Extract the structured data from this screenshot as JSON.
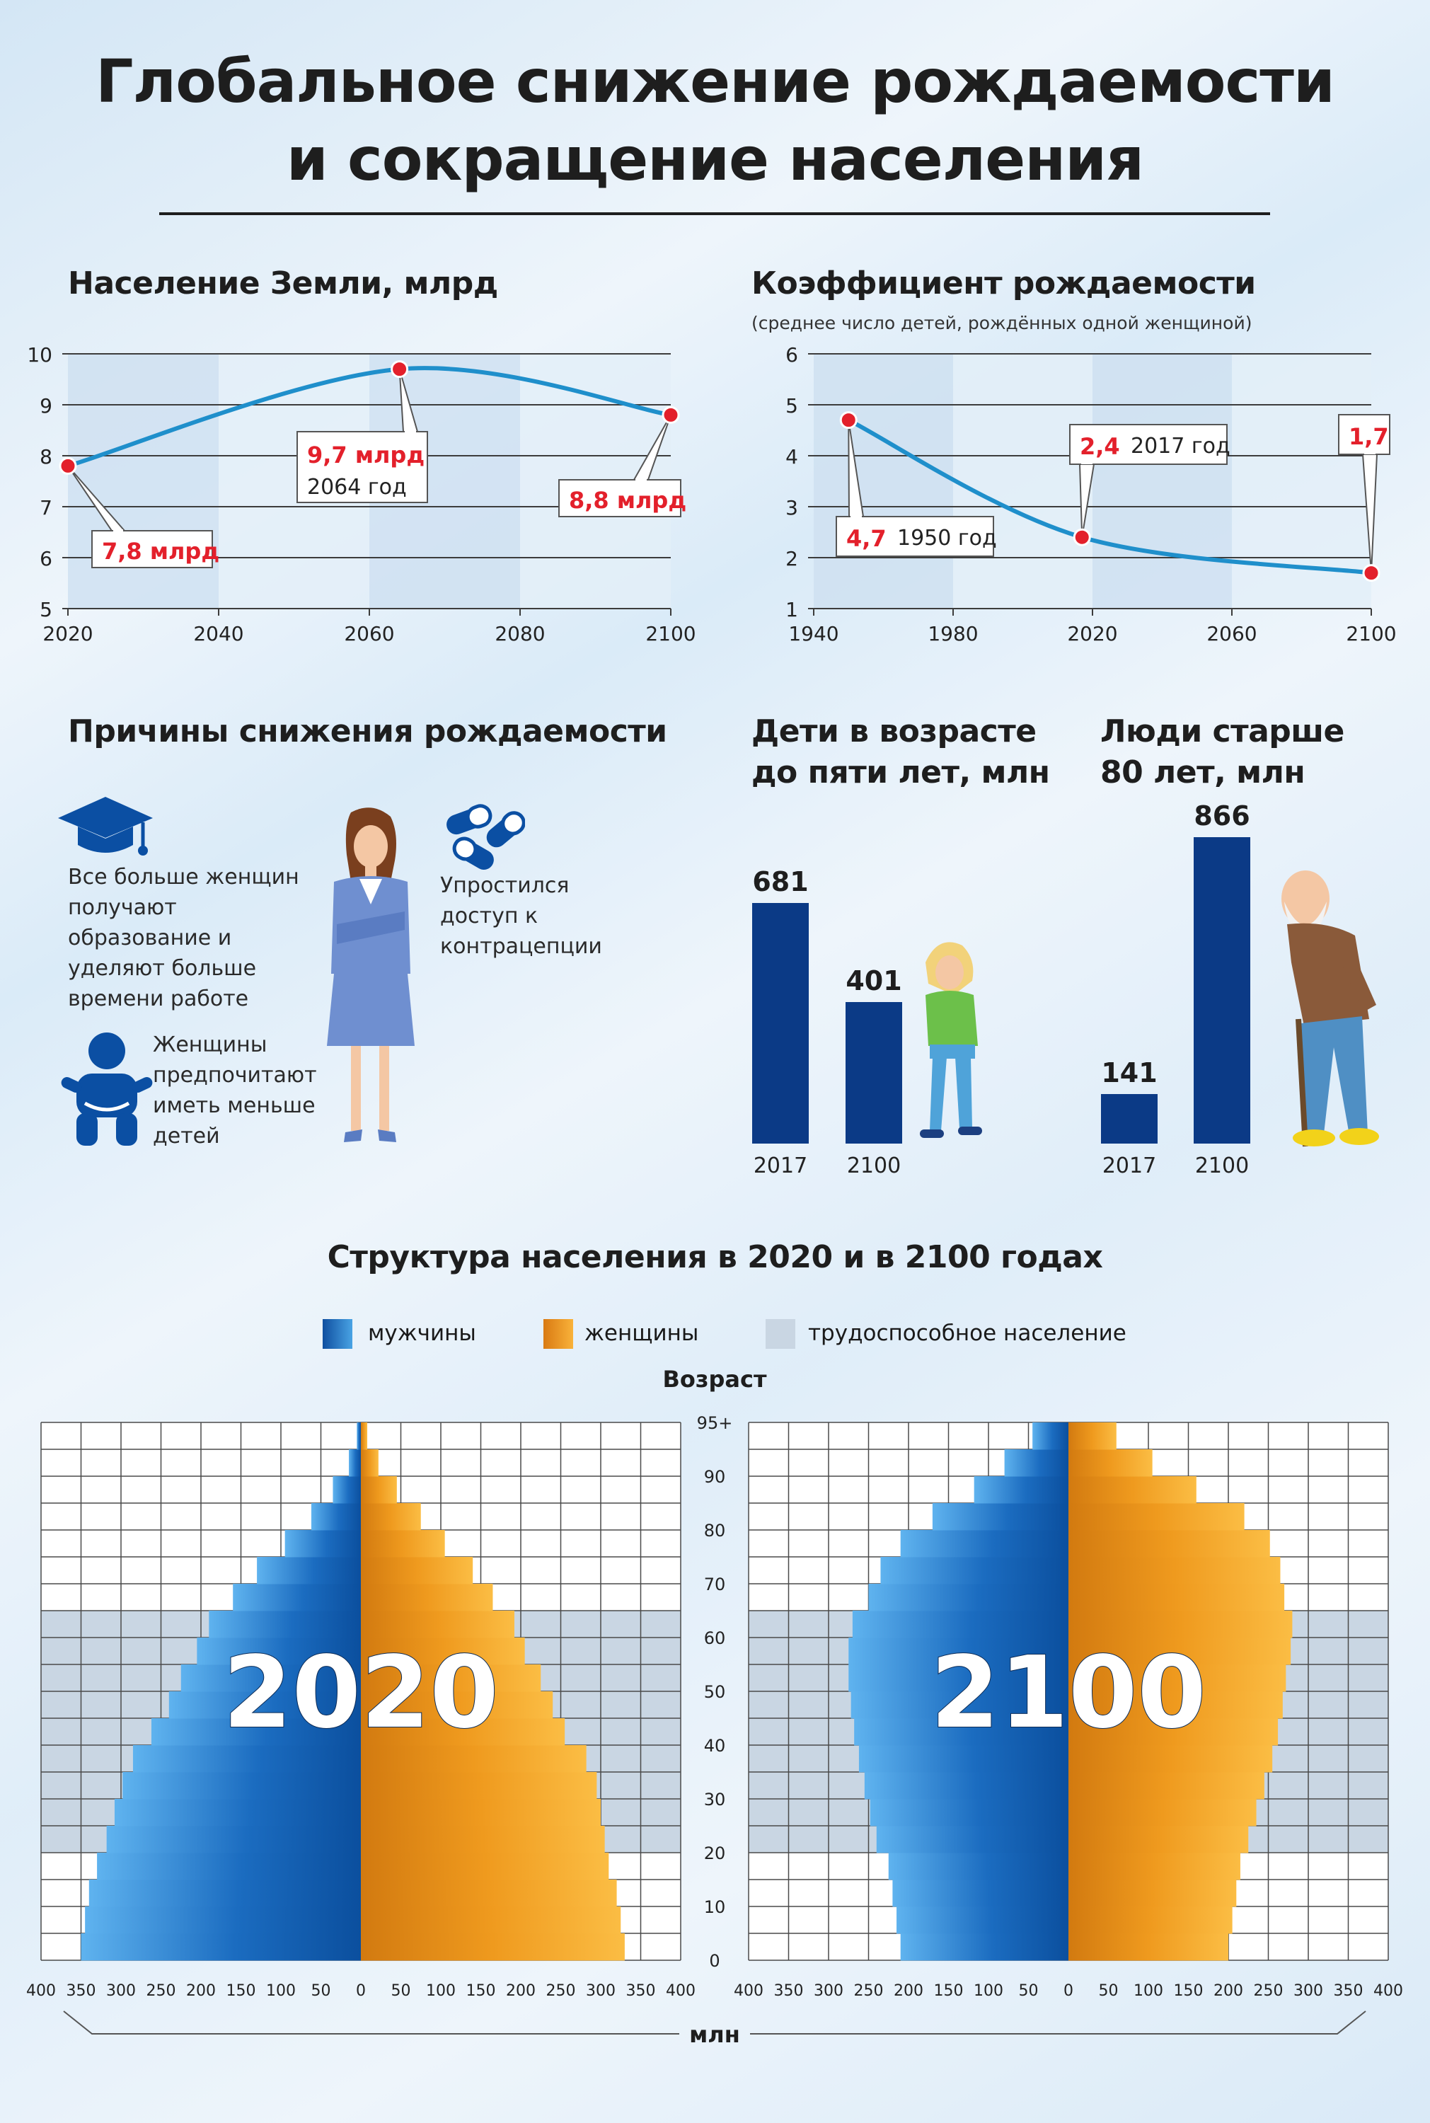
{
  "page": {
    "title_line1": "Глобальное снижение рождаемости",
    "title_line2": "и сокращение населения"
  },
  "colors": {
    "line": "#1f8fcb",
    "point": "#e3202b",
    "bar": "#0b3a86",
    "male": "#1f6fc2",
    "female": "#f19a1f",
    "working_band": "#c9d6e3"
  },
  "population": {
    "title": "Население Земли, млрд",
    "callouts": [
      {
        "value": "7,8 млрд",
        "year": ""
      },
      {
        "value": "9,7 млрд",
        "year": "2064 год"
      },
      {
        "value": "8,8 млрд",
        "year": ""
      }
    ]
  },
  "fertility": {
    "title": "Коэффициент рождаемости",
    "subtitle": "(среднее число детей, рождённых одной женщиной)",
    "callouts": [
      {
        "value": "4,7",
        "year": "1950 год"
      },
      {
        "value": "2,4",
        "year": "2017 год"
      },
      {
        "value": "1,7",
        "year": ""
      }
    ]
  },
  "reasons": {
    "title": "Причины снижения рождаемости",
    "icons": [
      "graduation-cap-icon",
      "woman-figure-icon",
      "pills-icon",
      "baby-icon"
    ],
    "items": [
      "Все больше женщин получают образование и уделяют больше времени работе",
      "Упростился доступ к контрацепции",
      "Женщины предпочитают иметь меньше детей"
    ]
  },
  "children": {
    "title_line1": "Дети в возрасте",
    "title_line2": "до пяти лет, млн",
    "icon": "child-icon"
  },
  "elderly": {
    "title_line1": "Люди старше",
    "title_line2": "80 лет, млн",
    "icon": "elderly-man-icon"
  },
  "structure": {
    "title": "Структура населения в 2020 и в 2100 годах",
    "legend": [
      {
        "label": "мужчины",
        "color": "#1f6fc2"
      },
      {
        "label": "женщины",
        "color": "#f19a1f"
      },
      {
        "label": "трудоспособное население",
        "color": "#c9d6e3"
      }
    ],
    "age_label": "Возраст",
    "x_unit": "млн",
    "left_year": "2020",
    "right_year": "2100"
  },
  "chart_data": [
    {
      "type": "line",
      "title": "Население Земли, млрд",
      "x": [
        2020,
        2064,
        2100
      ],
      "series": [
        {
          "values": [
            7.8,
            9.7,
            8.8
          ]
        }
      ],
      "xlim": [
        2020,
        2100
      ],
      "ylim": [
        5,
        10
      ],
      "xticks": [
        2020,
        2040,
        2060,
        2080,
        2100
      ],
      "yticks": [
        5,
        6,
        7,
        8,
        9,
        10
      ],
      "grid": true
    },
    {
      "type": "line",
      "title": "Коэффициент рождаемости",
      "subtitle": "(среднее число детей, рождённых одной женщиной)",
      "x": [
        1950,
        2017,
        2100
      ],
      "series": [
        {
          "values": [
            4.7,
            2.4,
            1.7
          ]
        }
      ],
      "xlim": [
        1940,
        2100
      ],
      "ylim": [
        1,
        6
      ],
      "xticks": [
        1940,
        1980,
        2020,
        2060,
        2100
      ],
      "yticks": [
        1,
        2,
        3,
        4,
        5,
        6
      ],
      "grid": true
    },
    {
      "type": "bar",
      "title": "Дети в возрасте до пяти лет, млн",
      "categories": [
        "2017",
        "2100"
      ],
      "values": [
        681,
        401
      ]
    },
    {
      "type": "bar",
      "title": "Люди старше 80 лет, млн",
      "categories": [
        "2017",
        "2100"
      ],
      "values": [
        141,
        866
      ]
    },
    {
      "type": "bar",
      "title": "Структура населения в 2020 и в 2100 годах",
      "orientation": "horizontal-pyramid",
      "age_ticks": [
        "0",
        "10",
        "20",
        "30",
        "40",
        "50",
        "60",
        "70",
        "80",
        "90",
        "95+"
      ],
      "x_ticks": [
        "400",
        "350",
        "300",
        "250",
        "200",
        "150",
        "100",
        "50",
        "0",
        "50",
        "100",
        "150",
        "200",
        "250",
        "300",
        "350",
        "400"
      ],
      "xlim": [
        0,
        400
      ],
      "working_age": [
        20,
        64
      ],
      "age_groups": [
        "0-4",
        "5-9",
        "10-14",
        "15-19",
        "20-24",
        "25-29",
        "30-34",
        "35-39",
        "40-44",
        "45-49",
        "50-54",
        "55-59",
        "60-64",
        "65-69",
        "70-74",
        "75-79",
        "80-84",
        "85-89",
        "90-94",
        "95+"
      ],
      "series": [
        {
          "name": "мужчины",
          "year": "2020",
          "values": [
            350,
            345,
            340,
            330,
            318,
            308,
            298,
            285,
            262,
            240,
            225,
            205,
            190,
            160,
            130,
            95,
            62,
            35,
            15,
            5
          ]
        },
        {
          "name": "женщины",
          "year": "2020",
          "values": [
            330,
            325,
            320,
            310,
            305,
            300,
            295,
            282,
            255,
            240,
            225,
            205,
            192,
            165,
            140,
            105,
            75,
            45,
            22,
            8
          ]
        },
        {
          "name": "мужчины",
          "year": "2100",
          "values": [
            210,
            215,
            220,
            225,
            240,
            248,
            255,
            262,
            268,
            272,
            275,
            275,
            270,
            250,
            235,
            210,
            170,
            118,
            80,
            45
          ]
        },
        {
          "name": "женщины",
          "year": "2100",
          "values": [
            200,
            205,
            210,
            215,
            225,
            235,
            245,
            255,
            262,
            268,
            272,
            278,
            280,
            270,
            265,
            252,
            220,
            160,
            105,
            60
          ]
        }
      ]
    }
  ]
}
